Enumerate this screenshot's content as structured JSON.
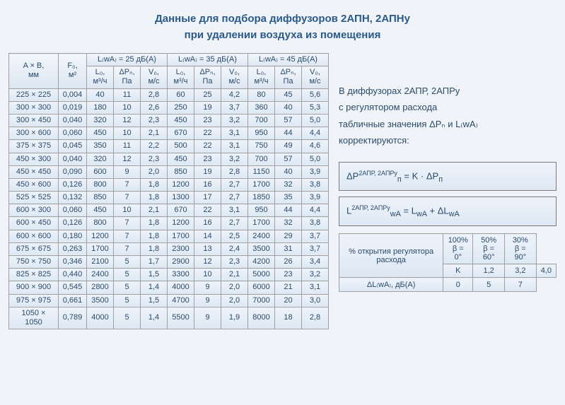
{
  "title_l1": "Данные для подбора диффузоров 2АПН, 2АПНу",
  "title_l2": "при удалении воздуха из помещения",
  "headers": {
    "dim": "A × B,",
    "dim_unit": "мм",
    "f0": "F₀,",
    "f0_unit": "м²",
    "group25": "L₍wA₎ = 25 дБ(А)",
    "group35": "L₍wA₎ = 35 дБ(А)",
    "group45": "L₍wA₎ = 45 дБ(А)",
    "L0": "L₀,",
    "L0_unit": "м³/ч",
    "dP": "ΔPₙ,",
    "dP_unit": "Па",
    "V0": "V₀,",
    "V0_unit": "м/с"
  },
  "rows": [
    {
      "dim": "225 × 225",
      "f0": "0,004",
      "c": [
        [
          "40",
          "11",
          "2,8"
        ],
        [
          "60",
          "25",
          "4,2"
        ],
        [
          "80",
          "45",
          "5,6"
        ]
      ]
    },
    {
      "dim": "300 × 300",
      "f0": "0,019",
      "c": [
        [
          "180",
          "10",
          "2,6"
        ],
        [
          "250",
          "19",
          "3,7"
        ],
        [
          "360",
          "40",
          "5,3"
        ]
      ]
    },
    {
      "dim": "300 × 450",
      "f0": "0,040",
      "c": [
        [
          "320",
          "12",
          "2,3"
        ],
        [
          "450",
          "23",
          "3,2"
        ],
        [
          "700",
          "57",
          "5,0"
        ]
      ]
    },
    {
      "dim": "300 × 600",
      "f0": "0,060",
      "c": [
        [
          "450",
          "10",
          "2,1"
        ],
        [
          "670",
          "22",
          "3,1"
        ],
        [
          "950",
          "44",
          "4,4"
        ]
      ]
    },
    {
      "dim": "375 × 375",
      "f0": "0,045",
      "c": [
        [
          "350",
          "11",
          "2,2"
        ],
        [
          "500",
          "22",
          "3,1"
        ],
        [
          "750",
          "49",
          "4,6"
        ]
      ]
    },
    {
      "dim": "450 × 300",
      "f0": "0,040",
      "c": [
        [
          "320",
          "12",
          "2,3"
        ],
        [
          "450",
          "23",
          "3,2"
        ],
        [
          "700",
          "57",
          "5,0"
        ]
      ]
    },
    {
      "dim": "450 × 450",
      "f0": "0,090",
      "c": [
        [
          "600",
          "9",
          "2,0"
        ],
        [
          "850",
          "19",
          "2,8"
        ],
        [
          "1150",
          "40",
          "3,9"
        ]
      ]
    },
    {
      "dim": "450 × 600",
      "f0": "0,126",
      "c": [
        [
          "800",
          "7",
          "1,8"
        ],
        [
          "1200",
          "16",
          "2,7"
        ],
        [
          "1700",
          "32",
          "3,8"
        ]
      ]
    },
    {
      "dim": "525 × 525",
      "f0": "0,132",
      "c": [
        [
          "850",
          "7",
          "1,8"
        ],
        [
          "1300",
          "17",
          "2,7"
        ],
        [
          "1850",
          "35",
          "3,9"
        ]
      ]
    },
    {
      "dim": "600 × 300",
      "f0": "0,060",
      "c": [
        [
          "450",
          "10",
          "2,1"
        ],
        [
          "670",
          "22",
          "3,1"
        ],
        [
          "950",
          "44",
          "4,4"
        ]
      ]
    },
    {
      "dim": "600 × 450",
      "f0": "0,126",
      "c": [
        [
          "800",
          "7",
          "1,8"
        ],
        [
          "1200",
          "16",
          "2,7"
        ],
        [
          "1700",
          "32",
          "3,8"
        ]
      ]
    },
    {
      "dim": "600 × 600",
      "f0": "0,180",
      "c": [
        [
          "1200",
          "7",
          "1,8"
        ],
        [
          "1700",
          "14",
          "2,5"
        ],
        [
          "2400",
          "29",
          "3,7"
        ]
      ]
    },
    {
      "dim": "675 × 675",
      "f0": "0,263",
      "c": [
        [
          "1700",
          "7",
          "1,8"
        ],
        [
          "2300",
          "13",
          "2,4"
        ],
        [
          "3500",
          "31",
          "3,7"
        ]
      ]
    },
    {
      "dim": "750 × 750",
      "f0": "0,346",
      "c": [
        [
          "2100",
          "5",
          "1,7"
        ],
        [
          "2900",
          "12",
          "2,3"
        ],
        [
          "4200",
          "26",
          "3,4"
        ]
      ]
    },
    {
      "dim": "825 × 825",
      "f0": "0,440",
      "c": [
        [
          "2400",
          "5",
          "1,5"
        ],
        [
          "3300",
          "10",
          "2,1"
        ],
        [
          "5000",
          "23",
          "3,2"
        ]
      ]
    },
    {
      "dim": "900 × 900",
      "f0": "0,545",
      "c": [
        [
          "2800",
          "5",
          "1,4"
        ],
        [
          "4000",
          "9",
          "2,0"
        ],
        [
          "6000",
          "21",
          "3,1"
        ]
      ]
    },
    {
      "dim": "975 × 975",
      "f0": "0,661",
      "c": [
        [
          "3500",
          "5",
          "1,5"
        ],
        [
          "4700",
          "9",
          "2,0"
        ],
        [
          "7000",
          "20",
          "3,0"
        ]
      ]
    },
    {
      "dim": "1050 × 1050",
      "f0": "0,789",
      "c": [
        [
          "4000",
          "5",
          "1,4"
        ],
        [
          "5500",
          "9",
          "1,9"
        ],
        [
          "8000",
          "18",
          "2,8"
        ]
      ]
    }
  ],
  "side_text": [
    "В диффузорах 2АПР, 2АПРу",
    "с регулятором расхода",
    "табличные значения ΔPₙ и L₍wA₎",
    "корректируются:"
  ],
  "formula1_html": "ΔP<span class='sup'>2АПР, 2АПРу</span><sub>п</sub> = K · ΔP<sub>п</sub>",
  "formula2_html": "L<span class='sup'>2АПР, 2АПРу</span><sub>wA</sub> = L<sub>wA</sub> + ΔL<sub>wA</sub>",
  "small_table": {
    "h1": "% открытия регулятора расхода",
    "cols": [
      {
        "pct": "100%",
        "beta": "β = 0°"
      },
      {
        "pct": "50%",
        "beta": "β = 60°"
      },
      {
        "pct": "30%",
        "beta": "β = 90°"
      }
    ],
    "rows": [
      {
        "label": "K",
        "v": [
          "1,2",
          "3,2",
          "4,0"
        ]
      },
      {
        "label": "ΔL₍wA₎, дБ(А)",
        "v": [
          "0",
          "5",
          "7"
        ]
      }
    ]
  }
}
